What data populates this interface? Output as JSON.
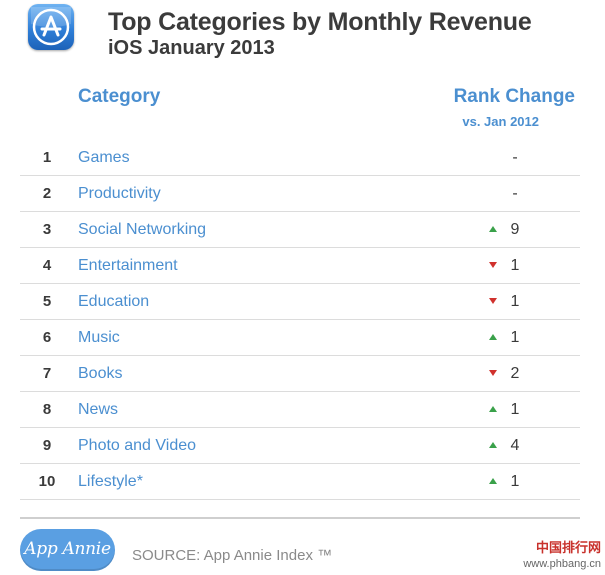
{
  "header": {
    "title": "Top Categories by Monthly Revenue",
    "subtitle": "iOS January 2013",
    "icon": "app-store-icon"
  },
  "columns": {
    "category": "Category",
    "rank_change": "Rank Change",
    "rank_change_sub": "vs. Jan 2012"
  },
  "colors": {
    "accent": "#4b8fd0",
    "up": "#3aa14a",
    "down": "#d0312d"
  },
  "chart_data": {
    "type": "table",
    "title": "Top Categories by Monthly Revenue",
    "subtitle": "iOS January 2013",
    "columns": [
      "",
      "Category",
      "Rank Change"
    ],
    "rows": [
      {
        "rank": "1",
        "category": "Games",
        "direction": "none",
        "change": "-"
      },
      {
        "rank": "2",
        "category": "Productivity",
        "direction": "none",
        "change": "-"
      },
      {
        "rank": "3",
        "category": "Social Networking",
        "direction": "up",
        "change": "9"
      },
      {
        "rank": "4",
        "category": "Entertainment",
        "direction": "down",
        "change": "1"
      },
      {
        "rank": "5",
        "category": "Education",
        "direction": "down",
        "change": "1"
      },
      {
        "rank": "6",
        "category": "Music",
        "direction": "up",
        "change": "1"
      },
      {
        "rank": "7",
        "category": "Books",
        "direction": "down",
        "change": "2"
      },
      {
        "rank": "8",
        "category": "News",
        "direction": "up",
        "change": "1"
      },
      {
        "rank": "9",
        "category": "Photo and Video",
        "direction": "up",
        "change": "4"
      },
      {
        "rank": "10",
        "category": "Lifestyle*",
        "direction": "up",
        "change": "1"
      }
    ]
  },
  "footer": {
    "logo_text": "App Annie",
    "source": "SOURCE: App Annie Index ™"
  },
  "watermark": {
    "line1": "中国排行网",
    "line2": "www.phbang.cn"
  }
}
